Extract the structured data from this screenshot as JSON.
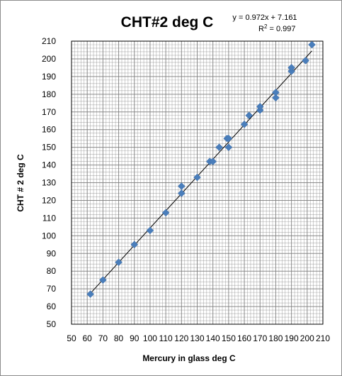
{
  "chart_data": {
    "type": "scatter",
    "title": "CHT#2  deg C",
    "xlabel": "Mercury in glass  deg C",
    "ylabel": "CHT # 2 deg C",
    "xlim": [
      50,
      210
    ],
    "ylim": [
      50,
      210
    ],
    "x_major_step": 10,
    "y_major_step": 10,
    "minor_step": 2,
    "grid": true,
    "legend": "none",
    "marker_color": "#4a7ebb",
    "trendline_color": "#000000",
    "gridline_color": "#7f7f7f",
    "xticks": [
      "50",
      "60",
      "70",
      "80",
      "90",
      "100",
      "110",
      "120",
      "130",
      "140",
      "150",
      "160",
      "170",
      "180",
      "190",
      "200",
      "210"
    ],
    "yticks": [
      "50",
      "60",
      "70",
      "80",
      "90",
      "100",
      "110",
      "120",
      "130",
      "140",
      "150",
      "160",
      "170",
      "180",
      "190",
      "200",
      "210"
    ],
    "trendline": {
      "equation": "y = 0.972x + 7.161",
      "r2_prefix": "R",
      "r2_exp": "2",
      "r2_suffix": " = 0.997",
      "slope": 0.972,
      "intercept": 7.161,
      "x_range": [
        62,
        203
      ]
    },
    "series": [
      {
        "x": [
          62,
          70,
          80,
          90,
          100,
          110,
          120,
          120,
          130,
          138,
          140,
          144,
          149,
          150,
          150,
          160,
          163,
          170,
          170,
          180,
          180,
          190,
          190,
          199,
          203
        ],
        "y": [
          67,
          75,
          85,
          95,
          103,
          113,
          124,
          128,
          133,
          142,
          142,
          150,
          155,
          155,
          150,
          163,
          168,
          171,
          173,
          178,
          181,
          193,
          195,
          199,
          208
        ]
      }
    ]
  }
}
